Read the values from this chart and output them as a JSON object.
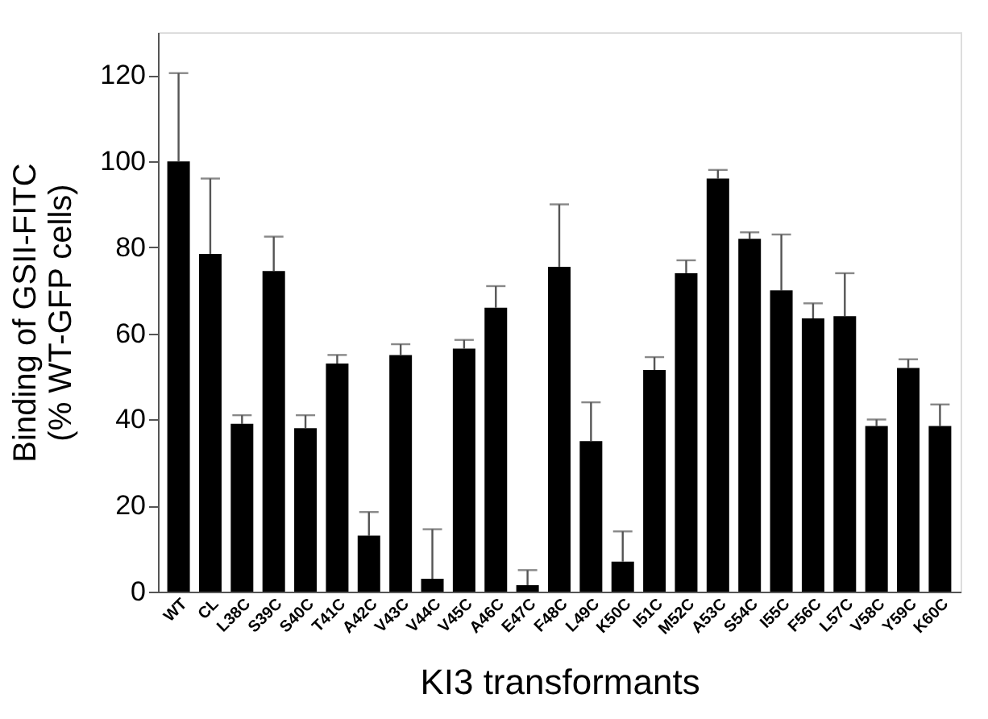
{
  "chart_data": {
    "type": "bar",
    "xlabel": "KI3 transformants",
    "ylabel": "Binding of  GSII-FITC\n(% WT-GFP cells)",
    "categories": [
      "WT",
      "CL",
      "L38C",
      "S39C",
      "S40C",
      "T41C",
      "A42C",
      "V43C",
      "V44C",
      "V45C",
      "A46C",
      "E47C",
      "F48C",
      "L49C",
      "K50C",
      "I51C",
      "M52C",
      "A53C",
      "S54C",
      "I55C",
      "F56C",
      "L57C",
      "V58C",
      "Y59C",
      "K60C"
    ],
    "values": [
      100,
      78.5,
      39,
      74.5,
      38,
      53,
      13,
      55,
      3,
      56.5,
      66,
      1.5,
      75.5,
      35,
      7,
      51.5,
      74,
      96,
      82,
      70,
      63.5,
      64,
      38.5,
      52,
      38.5
    ],
    "errors": [
      [
        100,
        120.5
      ],
      [
        78.5,
        96
      ],
      [
        39,
        41
      ],
      [
        74.5,
        82.5
      ],
      [
        38,
        41
      ],
      [
        53,
        55
      ],
      [
        13,
        18.5
      ],
      [
        55,
        57.5
      ],
      [
        3,
        14.5
      ],
      [
        56.5,
        58.5
      ],
      [
        66,
        71
      ],
      [
        1.5,
        5
      ],
      [
        75.5,
        90
      ],
      [
        35,
        44
      ],
      [
        7,
        14
      ],
      [
        51.5,
        54.5
      ],
      [
        74,
        77
      ],
      [
        96,
        98
      ],
      [
        82,
        83.5
      ],
      [
        70,
        83
      ],
      [
        63.5,
        67
      ],
      [
        64,
        74
      ],
      [
        38.5,
        40
      ],
      [
        52,
        54
      ],
      [
        38.5,
        43.5
      ]
    ],
    "color": "#000000",
    "ylim": [
      0,
      130
    ],
    "yticks": [
      0,
      20,
      40,
      60,
      80,
      100,
      120
    ],
    "grid": false
  }
}
